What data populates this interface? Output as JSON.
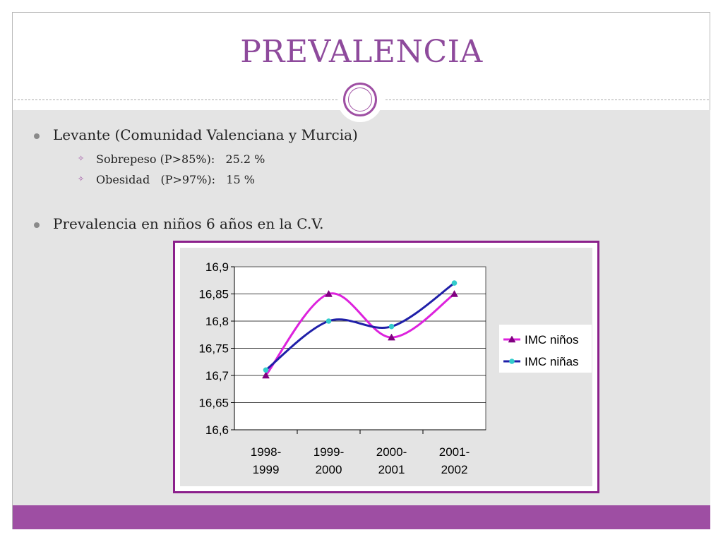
{
  "slide": {
    "title": "PREVALENCIA"
  },
  "bullets": [
    {
      "text": "Levante (Comunidad Valenciana y Murcia)",
      "sub": [
        {
          "label": "Sobrepeso (P>85%):",
          "value": "25.2 %"
        },
        {
          "label": "Obesidad   (P>97%):",
          "value": "15 %"
        }
      ]
    },
    {
      "text": "Prevalencia en niños 6 años en la C.V.",
      "sub": []
    }
  ],
  "chart_data": {
    "type": "line",
    "categories": [
      [
        "1998-",
        "1999"
      ],
      [
        "1999-",
        "2000"
      ],
      [
        "2000-",
        "2001"
      ],
      [
        "2001-",
        "2002"
      ]
    ],
    "series": [
      {
        "name": "IMC niños",
        "values": [
          16.7,
          16.85,
          16.77,
          16.85
        ],
        "color": "#dd22dd",
        "marker": "triangle",
        "marker_color": "#800080"
      },
      {
        "name": "IMC niñas",
        "values": [
          16.71,
          16.8,
          16.79,
          16.87
        ],
        "color": "#1f1fa8",
        "marker": "circle",
        "marker_color": "#33cccc"
      }
    ],
    "ylim": [
      16.6,
      16.9
    ],
    "yticks": [
      "16,6",
      "16,65",
      "16,7",
      "16,75",
      "16,8",
      "16,85",
      "16,9"
    ],
    "grid": true,
    "smooth": true,
    "legend": "right"
  }
}
